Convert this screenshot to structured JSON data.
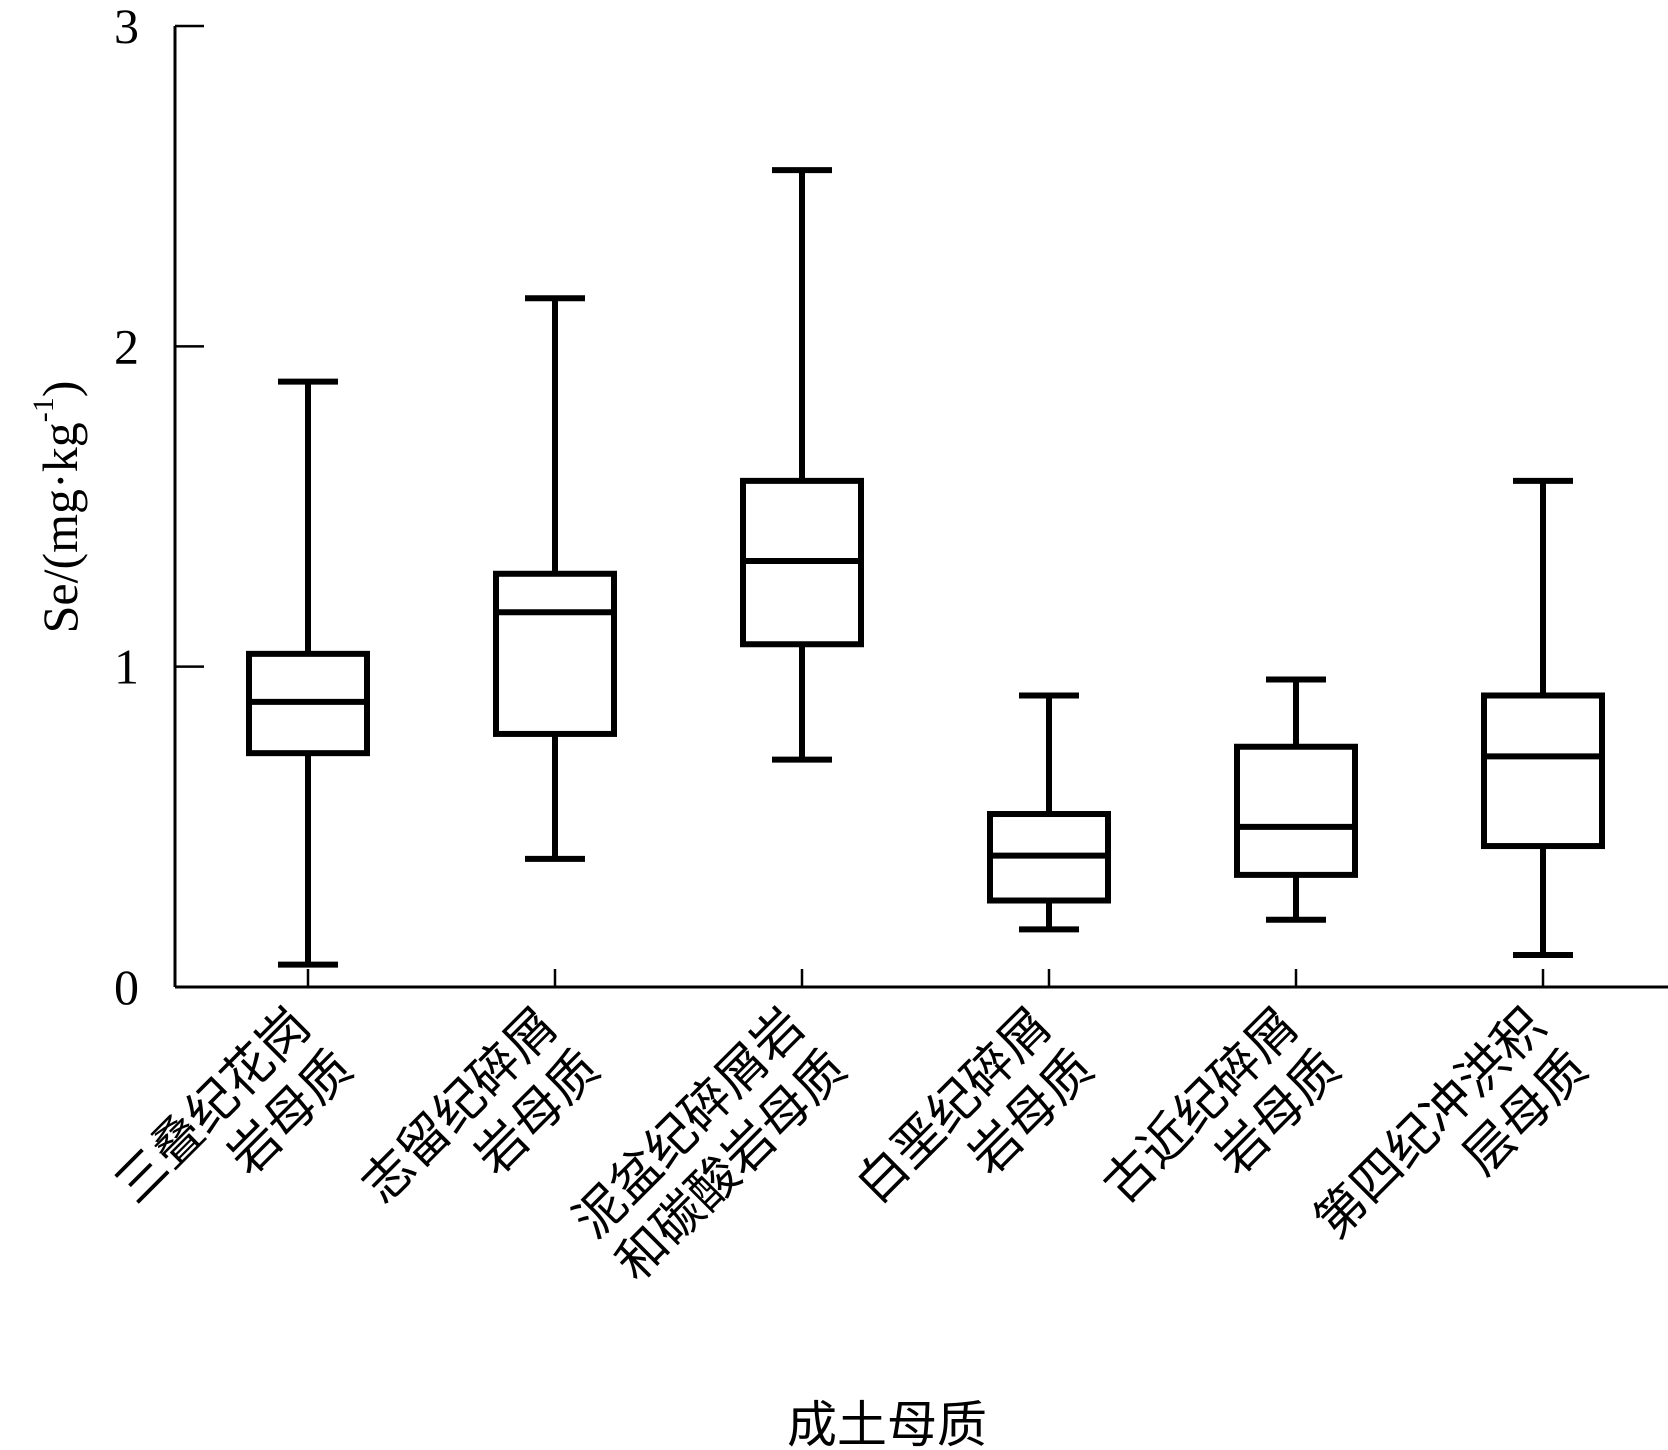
{
  "chart_data": {
    "type": "box",
    "xlabel": "成土母质",
    "ylabel": "Se/(mg·kg",
    "ylabel_sup": "-1",
    "ylabel_close": ")",
    "ylim": [
      0,
      3
    ],
    "yticks": [
      0,
      1,
      2,
      3
    ],
    "ytick_labels": [
      "0",
      "1",
      "2",
      "3"
    ],
    "grid": false,
    "categories": [
      [
        "三叠纪花岗",
        "岩母质"
      ],
      [
        "志留纪碎屑",
        "岩母质"
      ],
      [
        "泥盆纪碎屑岩",
        "和碳酸岩母质"
      ],
      [
        "白垩纪碎屑",
        "岩母质"
      ],
      [
        "古近纪碎屑",
        "岩母质"
      ],
      [
        "第四纪冲洪积",
        "层母质"
      ]
    ],
    "boxes": [
      {
        "min": 0.07,
        "q1": 0.73,
        "median": 0.89,
        "q3": 1.04,
        "max": 1.89
      },
      {
        "min": 0.4,
        "q1": 0.79,
        "median": 1.17,
        "q3": 1.29,
        "max": 2.15
      },
      {
        "min": 0.71,
        "q1": 1.07,
        "median": 1.33,
        "q3": 1.58,
        "max": 2.55
      },
      {
        "min": 0.18,
        "q1": 0.27,
        "median": 0.41,
        "q3": 0.54,
        "max": 0.91
      },
      {
        "min": 0.21,
        "q1": 0.35,
        "median": 0.5,
        "q3": 0.75,
        "max": 0.96
      },
      {
        "min": 0.1,
        "q1": 0.44,
        "median": 0.72,
        "q3": 0.91,
        "max": 1.58
      }
    ]
  }
}
